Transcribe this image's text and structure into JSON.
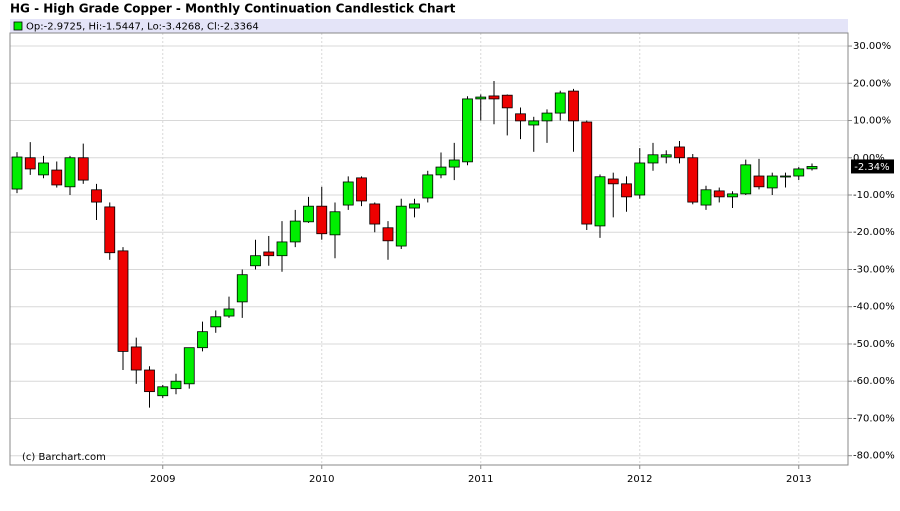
{
  "chart_data": {
    "type": "candlestick",
    "title": "HG - High Grade Copper - Monthly Continuation Candlestick Chart",
    "legend": "Op:-2.9725, Hi:-1.5447, Lo:-3.4268, Cl:-2.3364",
    "credit": "(c) Barchart.com",
    "up_color": "#00ee00",
    "down_color": "#ee0000",
    "categories": [
      null,
      null,
      null,
      null,
      null,
      null,
      null,
      null,
      null,
      null,
      null,
      "2009",
      null,
      null,
      null,
      null,
      null,
      null,
      null,
      null,
      null,
      null,
      null,
      "2010",
      null,
      null,
      null,
      null,
      null,
      null,
      null,
      null,
      null,
      null,
      null,
      "2011",
      null,
      null,
      null,
      null,
      null,
      null,
      null,
      null,
      null,
      null,
      null,
      "2012",
      null,
      null,
      null,
      null,
      null,
      null,
      null,
      null,
      null,
      null,
      null,
      "2013",
      null
    ],
    "open": [
      -8.4,
      0,
      -4.6,
      -3.3,
      -7.8,
      0,
      -8.6,
      -13.2,
      -25,
      -50.8,
      -57,
      -63.9,
      -62,
      -60.7,
      -51,
      -45.4,
      -42.5,
      -38.7,
      -29,
      -25.3,
      -26.3,
      -22.6,
      -17.2,
      -13,
      -20.7,
      -12.7,
      -5.4,
      -12.4,
      -18.8,
      -23.7,
      -13.5,
      -10.8,
      -4.6,
      -2.5,
      -1.1,
      15.8,
      16.6,
      16.8,
      11.8,
      8.8,
      9.9,
      12,
      17.9,
      9.6,
      -18.3,
      -5.7,
      -7,
      -10,
      -1.4,
      0.2,
      2.9,
      0,
      -12.7,
      -8.9,
      -10.5,
      -9.7,
      -4.9,
      -8.1,
      -5.1,
      -4.9,
      -2.9725
    ],
    "high": [
      1.5,
      4.2,
      0.5,
      -1,
      0.5,
      3.8,
      -7,
      -12,
      -24,
      -48.3,
      -56,
      -61,
      -58,
      -51,
      -44,
      -41,
      -37.3,
      -30,
      -22,
      -21,
      -17,
      -14,
      -10.5,
      -7.8,
      -12,
      -5,
      -5,
      -12,
      -17,
      -11,
      -11,
      -3.5,
      1.4,
      4,
      16.5,
      17,
      20.6,
      17,
      13.5,
      11,
      13,
      18,
      18.5,
      10,
      -4.5,
      -4,
      -5,
      2.6,
      4,
      2,
      4.5,
      1,
      -7.5,
      -8,
      -9,
      -0.5,
      -0.3,
      -4,
      -4,
      -2.5,
      -1.5447
    ],
    "low": [
      -9.5,
      -4.6,
      -5.5,
      -8,
      -10,
      -7,
      -16.7,
      -27.4,
      -57,
      -60.7,
      -67.1,
      -64.5,
      -63.5,
      -62,
      -52,
      -47,
      -43,
      -43,
      -30,
      -29,
      -30.6,
      -24,
      -17.5,
      -22,
      -27,
      -14,
      -13,
      -20,
      -27.4,
      -24.5,
      -16,
      -12,
      -5.5,
      -6,
      -2,
      10,
      9,
      6,
      5,
      1.6,
      4,
      10,
      1.6,
      -19.4,
      -21.5,
      -16,
      -14.5,
      -11,
      -3.5,
      -1.5,
      -1.5,
      -12.5,
      -14,
      -12,
      -13.5,
      -10,
      -8.5,
      -10,
      -8,
      -6,
      -3.4268
    ],
    "close": [
      0.2,
      -3,
      -1.4,
      -7.3,
      0,
      -6,
      -11.9,
      -25.5,
      -52,
      -57,
      -62.8,
      -61.5,
      -60,
      -51,
      -46.7,
      -42.7,
      -40.6,
      -31.4,
      -26.3,
      -26.3,
      -22.6,
      -17,
      -13,
      -20.4,
      -14.5,
      -6.5,
      -11.6,
      -17.8,
      -22.3,
      -13,
      -12.4,
      -4.6,
      -2.5,
      -0.6,
      15.8,
      16.3,
      15.8,
      13.4,
      9.9,
      9.9,
      12,
      17.4,
      9.9,
      -17.8,
      -5.1,
      -7,
      -10.5,
      -1.4,
      0.8,
      0.8,
      0,
      -11.9,
      -8.6,
      -10.5,
      -9.7,
      -1.9,
      -7.8,
      -4.9,
      -4.9,
      -3,
      -2.3364
    ],
    "last_value_label": "-2.34%",
    "ylim": [
      -82.5,
      33.5
    ],
    "yticks": [
      {
        "value": 30,
        "label": "30.00%"
      },
      {
        "value": 20,
        "label": "20.00%"
      },
      {
        "value": 10,
        "label": "10.00%"
      },
      {
        "value": 0,
        "label": "0.00%"
      },
      {
        "value": -10,
        "label": "-10.00%"
      },
      {
        "value": -20,
        "label": "-20.00%"
      },
      {
        "value": -30,
        "label": "-30.00%"
      },
      {
        "value": -40,
        "label": "-40.00%"
      },
      {
        "value": -50,
        "label": "-50.00%"
      },
      {
        "value": -60,
        "label": "-60.00%"
      },
      {
        "value": -70,
        "label": "-70.00%"
      },
      {
        "value": -80,
        "label": "-80.00%"
      }
    ],
    "grid": true
  }
}
